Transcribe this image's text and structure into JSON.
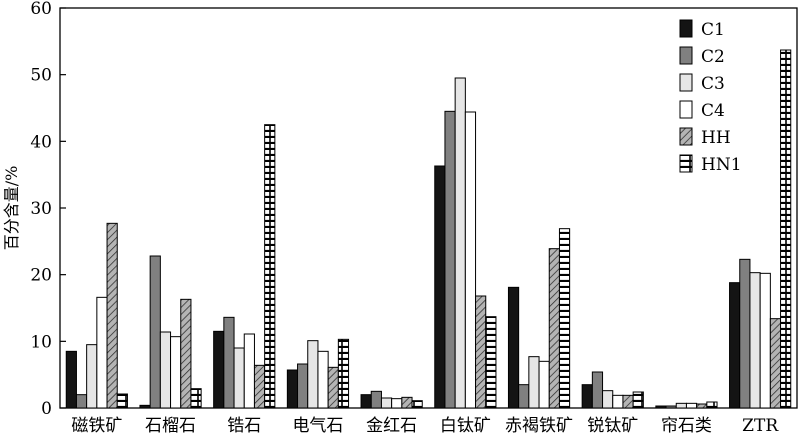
{
  "chart_data": {
    "type": "bar",
    "title": "",
    "xlabel": "",
    "ylabel": "百分含量/%",
    "ylim": [
      0,
      60
    ],
    "yticks": [
      0,
      10,
      20,
      30,
      40,
      50,
      60
    ],
    "grid": false,
    "legend_position": "top-right",
    "categories": [
      "磁铁矿",
      "石榴石",
      "锆石",
      "电气石",
      "金红石",
      "白钛矿",
      "赤褐铁矿",
      "锐钛矿",
      "帘石类",
      "ZTR"
    ],
    "series": [
      {
        "name": "C1",
        "fill": "solid-black",
        "values": [
          8.5,
          0.4,
          11.5,
          5.7,
          2.0,
          36.3,
          18.1,
          3.5,
          0.3,
          18.8
        ]
      },
      {
        "name": "C2",
        "fill": "solid-gray",
        "values": [
          2.0,
          22.8,
          13.6,
          6.6,
          2.5,
          44.5,
          3.5,
          5.4,
          0.3,
          22.3
        ]
      },
      {
        "name": "C3",
        "fill": "light-gray",
        "values": [
          9.5,
          11.4,
          9.0,
          10.1,
          1.5,
          49.5,
          7.7,
          2.6,
          0.7,
          20.3
        ]
      },
      {
        "name": "C4",
        "fill": "white",
        "values": [
          16.6,
          10.7,
          11.1,
          8.5,
          1.4,
          44.4,
          7.0,
          1.9,
          0.7,
          20.2
        ]
      },
      {
        "name": "HH",
        "fill": "diagonal-hatch",
        "values": [
          27.7,
          16.3,
          6.4,
          6.1,
          1.6,
          16.8,
          23.9,
          1.9,
          0.6,
          13.4
        ]
      },
      {
        "name": "HN1",
        "fill": "brick",
        "values": [
          2.1,
          2.9,
          42.5,
          10.3,
          1.1,
          13.7,
          26.9,
          2.4,
          0.9,
          53.7
        ]
      }
    ]
  }
}
